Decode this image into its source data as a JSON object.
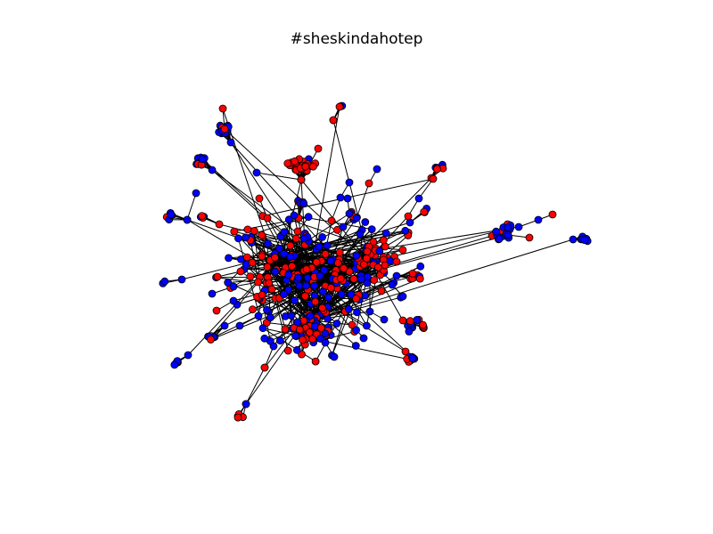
{
  "title": "#sheskindahotep",
  "colors": {
    "background": "#ffffff",
    "edge": "#000000",
    "node_red": "#ff0000",
    "node_blue": "#0000ff",
    "node_outline": "#000000"
  },
  "graph": {
    "type": "network",
    "node_color_classes": [
      "red",
      "blue"
    ]
  }
}
